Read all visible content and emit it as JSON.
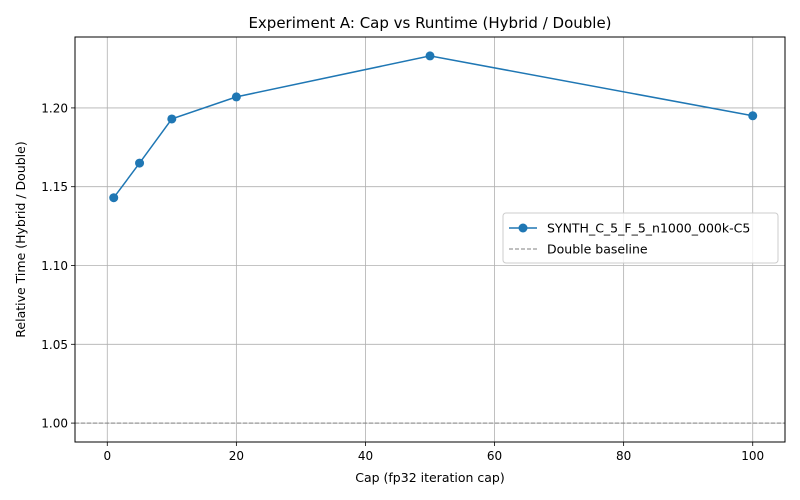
{
  "chart_data": {
    "type": "line",
    "title": "Experiment A: Cap vs Runtime (Hybrid / Double)",
    "xlabel": "Cap (fp32 iteration cap)",
    "ylabel": "Relative Time (Hybrid / Double)",
    "xlim": [
      -5,
      105
    ],
    "ylim": [
      0.988,
      1.245
    ],
    "xticks": [
      0,
      20,
      40,
      60,
      80,
      100
    ],
    "yticks": [
      1.0,
      1.05,
      1.1,
      1.15,
      1.2
    ],
    "xtick_labels": [
      "0",
      "20",
      "40",
      "60",
      "80",
      "100"
    ],
    "ytick_labels": [
      "1.00",
      "1.05",
      "1.10",
      "1.15",
      "1.20"
    ],
    "grid": true,
    "legend_position": "center-right",
    "series": [
      {
        "name": "SYNTH_C_5_F_5_n1000_000k-C5",
        "color": "#1f77b4",
        "marker": "circle",
        "x": [
          1,
          5,
          10,
          20,
          50,
          100
        ],
        "y": [
          1.143,
          1.165,
          1.193,
          1.207,
          1.233,
          1.195
        ]
      }
    ],
    "baseline": {
      "name": "Double baseline",
      "y": 1.0,
      "color": "#808080",
      "style": "dashed"
    }
  }
}
